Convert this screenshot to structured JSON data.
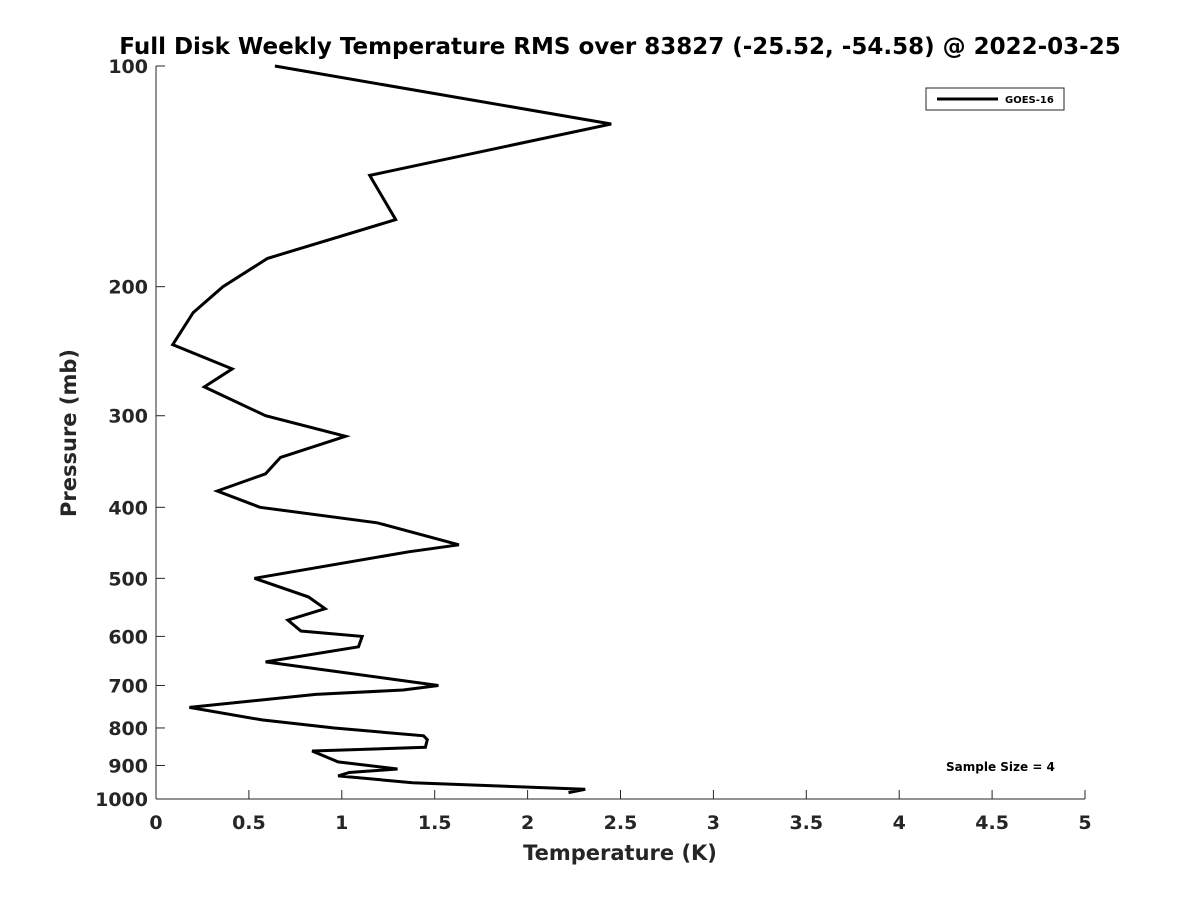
{
  "chart_data": {
    "type": "line",
    "title": "Full Disk Weekly Temperature RMS over 83827 (-25.52, -54.58) @ 2022-03-25",
    "xlabel": "Temperature (K)",
    "ylabel": "Pressure (mb)",
    "xlim": [
      0,
      5
    ],
    "ylim": [
      100,
      1000
    ],
    "yscale": "log",
    "y_reversed": true,
    "xticks": [
      0,
      0.5,
      1,
      1.5,
      2,
      2.5,
      3,
      3.5,
      4,
      4.5,
      5
    ],
    "xtick_labels": [
      "0",
      "0.5",
      "1",
      "1.5",
      "2",
      "2.5",
      "3",
      "3.5",
      "4",
      "4.5",
      "5"
    ],
    "yticks": [
      100,
      200,
      300,
      400,
      500,
      600,
      700,
      800,
      900,
      1000
    ],
    "ytick_labels": [
      "100",
      "200",
      "300",
      "400",
      "500",
      "600",
      "700",
      "800",
      "900",
      "1000"
    ],
    "grid": false,
    "legend_position": "top-right",
    "series": [
      {
        "name": "GOES-16",
        "color": "#000000",
        "x": [
          0.64,
          2.45,
          1.15,
          1.29,
          0.6,
          0.36,
          0.2,
          0.09,
          0.41,
          0.26,
          0.59,
          1.02,
          0.67,
          0.59,
          0.33,
          0.56,
          1.19,
          1.63,
          1.36,
          0.53,
          0.82,
          0.91,
          0.71,
          0.78,
          1.11,
          1.09,
          0.59,
          1.52,
          1.33,
          0.86,
          0.18,
          0.57,
          0.96,
          1.44,
          1.46,
          1.45,
          0.84,
          0.98,
          1.3,
          1.04,
          0.98,
          1.38,
          2.31,
          2.22
        ],
        "y": [
          100,
          120,
          141,
          162,
          183,
          200,
          217,
          240,
          259,
          274,
          300,
          320,
          342,
          360,
          380,
          400,
          420,
          450,
          460,
          500,
          530,
          550,
          570,
          590,
          600,
          620,
          650,
          700,
          710,
          720,
          750,
          780,
          800,
          820,
          830,
          850,
          860,
          890,
          910,
          920,
          930,
          950,
          970,
          980
        ]
      }
    ],
    "annotations": [
      "Sample Size = 4"
    ]
  }
}
